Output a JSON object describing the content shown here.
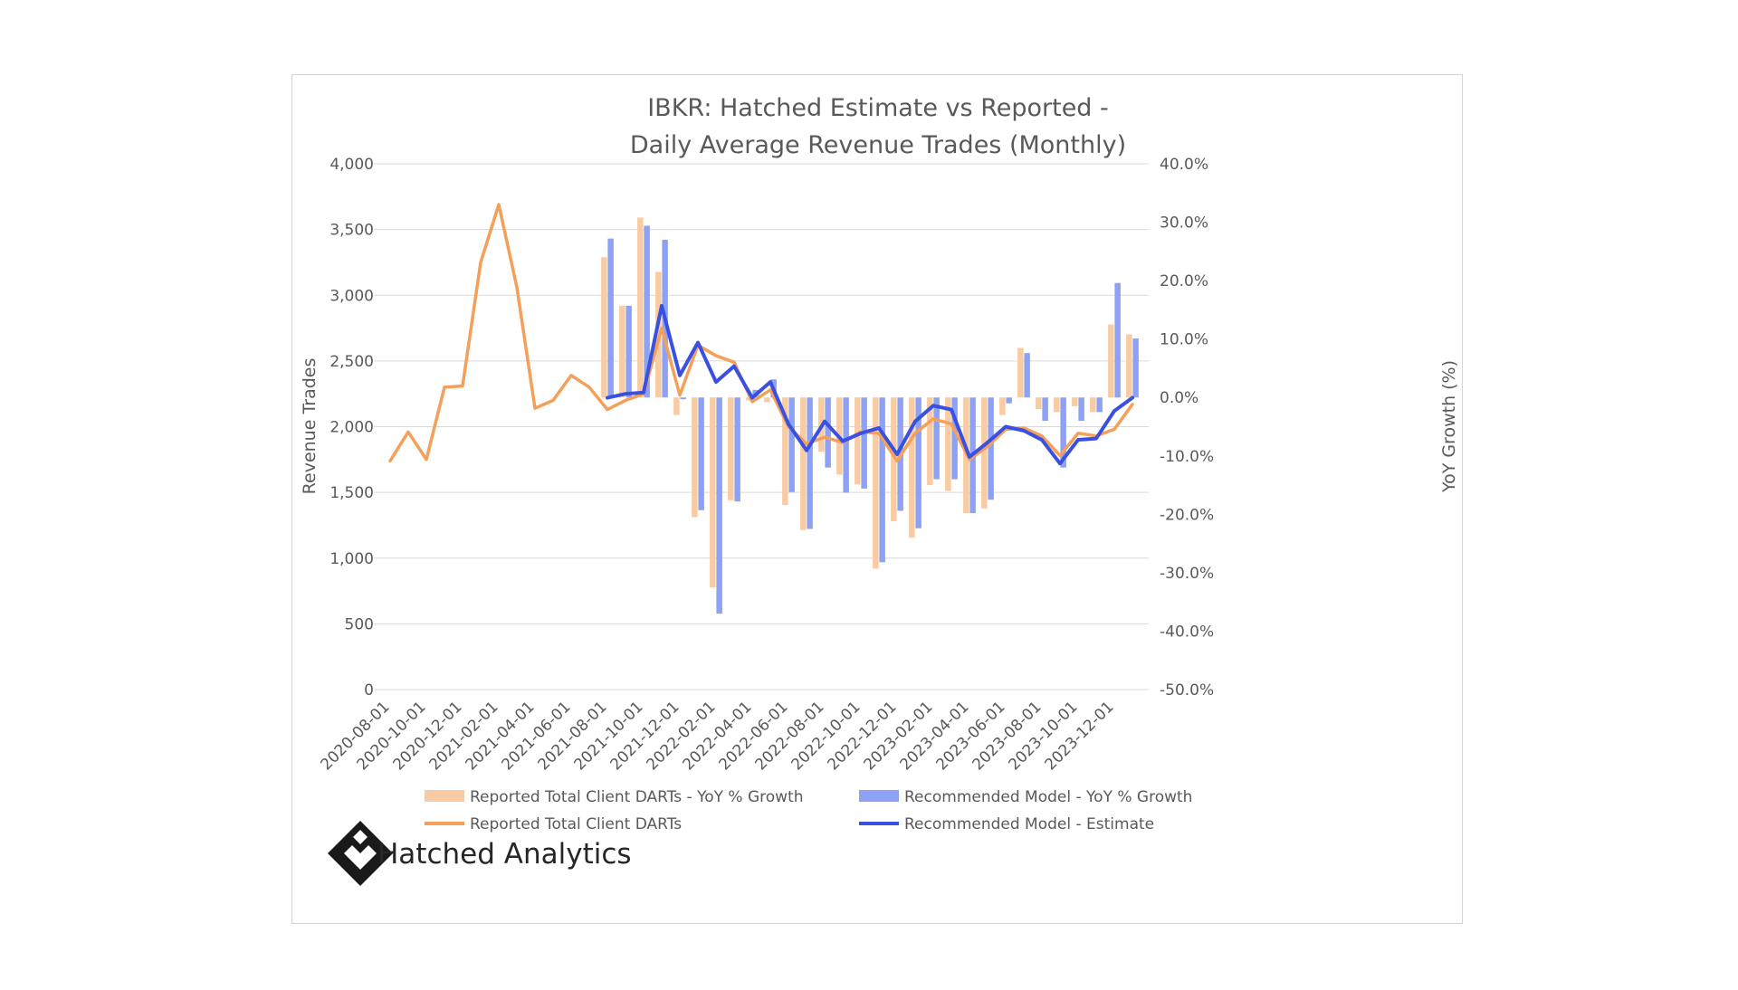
{
  "chart_data": {
    "type": "bar",
    "title": "IBKR: Hatched Estimate vs Reported -",
    "subtitle": "Daily Average Revenue Trades (Monthly)",
    "ylabel": "Revenue Trades",
    "y2label": "YoY Growth (%)",
    "ylim": [
      0,
      4000
    ],
    "y2lim": [
      -50,
      40
    ],
    "y_ticks": [
      "0",
      "500",
      "1,000",
      "1,500",
      "2,000",
      "2,500",
      "3,000",
      "3,500",
      "4,000"
    ],
    "y2_ticks": [
      "-50.0%",
      "-40.0%",
      "-30.0%",
      "-20.0%",
      "-10.0%",
      "0.0%",
      "10.0%",
      "20.0%",
      "30.0%",
      "40.0%"
    ],
    "x_tick_labels": [
      "2020-08-01",
      "2020-10-01",
      "2020-12-01",
      "2021-02-01",
      "2021-04-01",
      "2021-06-01",
      "2021-08-01",
      "2021-10-01",
      "2021-12-01",
      "2022-02-01",
      "2022-04-01",
      "2022-06-01",
      "2022-08-01",
      "2022-10-01",
      "2022-12-01",
      "2023-02-01",
      "2023-04-01",
      "2023-06-01",
      "2023-08-01",
      "2023-10-01",
      "2023-12-01"
    ],
    "x": [
      "2020-08-01",
      "2020-09-01",
      "2020-10-01",
      "2020-11-01",
      "2020-12-01",
      "2021-01-01",
      "2021-02-01",
      "2021-03-01",
      "2021-04-01",
      "2021-05-01",
      "2021-06-01",
      "2021-07-01",
      "2021-08-01",
      "2021-09-01",
      "2021-10-01",
      "2021-11-01",
      "2021-12-01",
      "2022-01-01",
      "2022-02-01",
      "2022-03-01",
      "2022-04-01",
      "2022-05-01",
      "2022-06-01",
      "2022-07-01",
      "2022-08-01",
      "2022-09-01",
      "2022-10-01",
      "2022-11-01",
      "2022-12-01",
      "2023-01-01",
      "2023-02-01",
      "2023-03-01",
      "2023-04-01",
      "2023-05-01",
      "2023-06-01",
      "2023-07-01",
      "2023-08-01",
      "2023-09-01",
      "2023-10-01",
      "2023-11-01",
      "2023-12-01",
      "2024-01-01"
    ],
    "series": [
      {
        "name": "Reported Total Client DARTs - YoY % Growth",
        "kind": "bar",
        "axis": "y2",
        "color": "#f8cba4",
        "values": [
          null,
          null,
          null,
          null,
          null,
          null,
          null,
          null,
          null,
          null,
          null,
          null,
          24,
          15.7,
          30.8,
          21.5,
          -3,
          -20.5,
          -32.5,
          -17.6,
          -0.5,
          -0.8,
          -18.4,
          -22.7,
          -9.3,
          -13.2,
          -14.9,
          -29.3,
          -21.2,
          -24,
          -15,
          -16,
          -19.8,
          -19,
          -3,
          8.5,
          -2,
          -2.5,
          -1.5,
          -2.5,
          12.5,
          10.8
        ]
      },
      {
        "name": "Recommended Model - YoY % Growth",
        "kind": "bar",
        "axis": "y2",
        "color": "#8ea2f5",
        "values": [
          null,
          null,
          null,
          null,
          null,
          null,
          null,
          null,
          null,
          null,
          null,
          null,
          27.2,
          15.7,
          29.4,
          27,
          -0.3,
          -19.3,
          -37,
          -17.8,
          1.3,
          3.1,
          -16.2,
          -22.5,
          -12,
          -16.3,
          -15.6,
          -28.2,
          -19.4,
          -22.4,
          -14,
          -14,
          -19.8,
          -17.5,
          -1,
          7.6,
          -4,
          -12,
          -4,
          -2.5,
          19.6,
          10.1
        ]
      },
      {
        "name": "Reported Total Client DARTs",
        "kind": "line",
        "axis": "y",
        "color": "#f5a05a",
        "values": [
          1740,
          1960,
          1750,
          2300,
          2310,
          3250,
          3690,
          3060,
          2140,
          2200,
          2390,
          2300,
          2130,
          2200,
          2250,
          2750,
          2240,
          2620,
          2540,
          2490,
          2190,
          2280,
          2000,
          1870,
          1920,
          1880,
          1960,
          1950,
          1740,
          1950,
          2060,
          2020,
          1750,
          1850,
          1980,
          1990,
          1930,
          1780,
          1950,
          1930,
          1980,
          2170
        ]
      },
      {
        "name": "Recommended Model - Estimate",
        "kind": "line",
        "axis": "y",
        "color": "#3a50e0",
        "values": [
          null,
          null,
          null,
          null,
          null,
          null,
          null,
          null,
          null,
          null,
          null,
          null,
          2220,
          2250,
          2260,
          2920,
          2390,
          2640,
          2340,
          2460,
          2220,
          2340,
          2020,
          1820,
          2040,
          1890,
          1950,
          1990,
          1790,
          2040,
          2160,
          2130,
          1770,
          1880,
          2000,
          1970,
          1900,
          1720,
          1900,
          1910,
          2120,
          2220
        ]
      }
    ],
    "legend_position": "bottom",
    "grid": true
  },
  "brand": {
    "name": "Hatched Analytics",
    "logo_icon": "hatched-diamond-logo"
  }
}
